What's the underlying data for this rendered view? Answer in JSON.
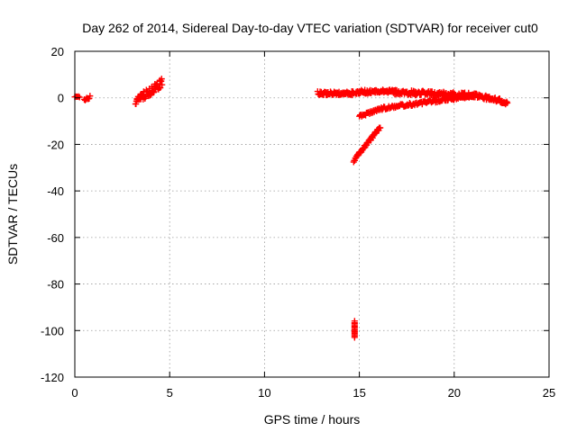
{
  "chart_data": {
    "type": "scatter",
    "title": "Day 262 of 2014, Sidereal Day-to-day VTEC variation (SDTVAR) for receiver cut0",
    "xlabel": "GPS time / hours",
    "ylabel": "SDTVAR / TECUs",
    "xlim": [
      0,
      25
    ],
    "ylim": [
      -120,
      20
    ],
    "xticks": [
      0,
      5,
      10,
      15,
      20,
      25
    ],
    "yticks": [
      20,
      0,
      -20,
      -40,
      -60,
      -80,
      -100,
      -120
    ],
    "grid": true,
    "marker": "plus",
    "color": "#ff0000",
    "series": [
      {
        "name": "SDTVAR",
        "segments": [
          {
            "x0": 0.0,
            "y0": 0.3,
            "x1": 0.25,
            "y1": 0.3,
            "n": 5,
            "spread": 0.3
          },
          {
            "x0": 0.5,
            "y0": -0.5,
            "x1": 0.8,
            "y1": 0.2,
            "n": 8,
            "spread": 0.8
          },
          {
            "x0": 3.2,
            "y0": -1.5,
            "x1": 4.6,
            "y1": 6.5,
            "n": 60,
            "spread": 1.8
          },
          {
            "x0": 12.8,
            "y0": 2.0,
            "x1": 14.7,
            "y1": 2.0,
            "n": 60,
            "spread": 0.8
          },
          {
            "x0": 14.8,
            "y0": 2.5,
            "x1": 16.6,
            "y1": 2.8,
            "n": 60,
            "spread": 0.8
          },
          {
            "x0": 16.6,
            "y0": 2.6,
            "x1": 21.3,
            "y1": 1.0,
            "n": 140,
            "spread": 1.0
          },
          {
            "x0": 21.3,
            "y0": 0.8,
            "x1": 22.8,
            "y1": -2.0,
            "n": 50,
            "spread": 0.9
          },
          {
            "x0": 15.0,
            "y0": -8.0,
            "x1": 16.2,
            "y1": -4.5,
            "n": 30,
            "spread": 0.5
          },
          {
            "x0": 16.2,
            "y0": -4.5,
            "x1": 21.0,
            "y1": 1.0,
            "n": 110,
            "spread": 0.7
          },
          {
            "x0": 14.7,
            "y0": -27.0,
            "x1": 16.1,
            "y1": -12.5,
            "n": 50,
            "spread": 0.6
          },
          {
            "x0": 14.75,
            "y0": -103.0,
            "x1": 14.75,
            "y1": -96.0,
            "n": 14,
            "spread": 0.15
          }
        ]
      }
    ]
  }
}
